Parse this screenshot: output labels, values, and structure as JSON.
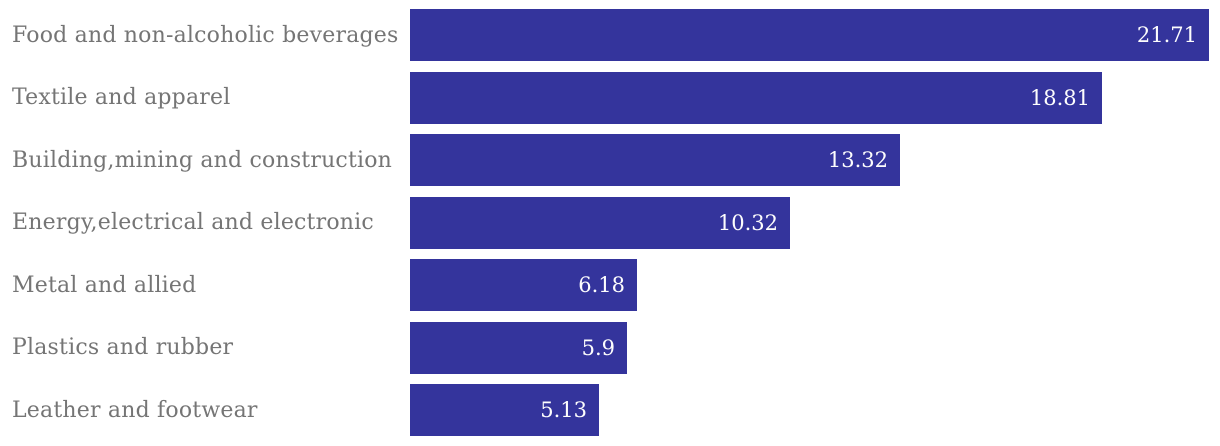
{
  "chart_data": {
    "type": "bar",
    "orientation": "horizontal",
    "title": "",
    "xlabel": "",
    "ylabel": "",
    "categories": [
      "Food and non-alcoholic beverages",
      "Textile and apparel",
      "Building,mining and construction",
      "Energy,electrical and electronic",
      "Metal and allied",
      "Plastics and rubber",
      "Leather and footwear"
    ],
    "values": [
      21.71,
      18.81,
      13.32,
      10.32,
      6.18,
      5.9,
      5.13
    ],
    "value_labels": [
      "21.71",
      "18.81",
      "13.32",
      "10.32",
      "6.18",
      "5.9",
      "5.13"
    ],
    "xlim": [
      0,
      22.0
    ],
    "grid": false,
    "legend": false,
    "value_labels_position": "inside-end",
    "colors": {
      "bar": "#34349c",
      "value_label": "#fdfdfd",
      "category_label": "#757575",
      "background": "#ffffff"
    }
  }
}
